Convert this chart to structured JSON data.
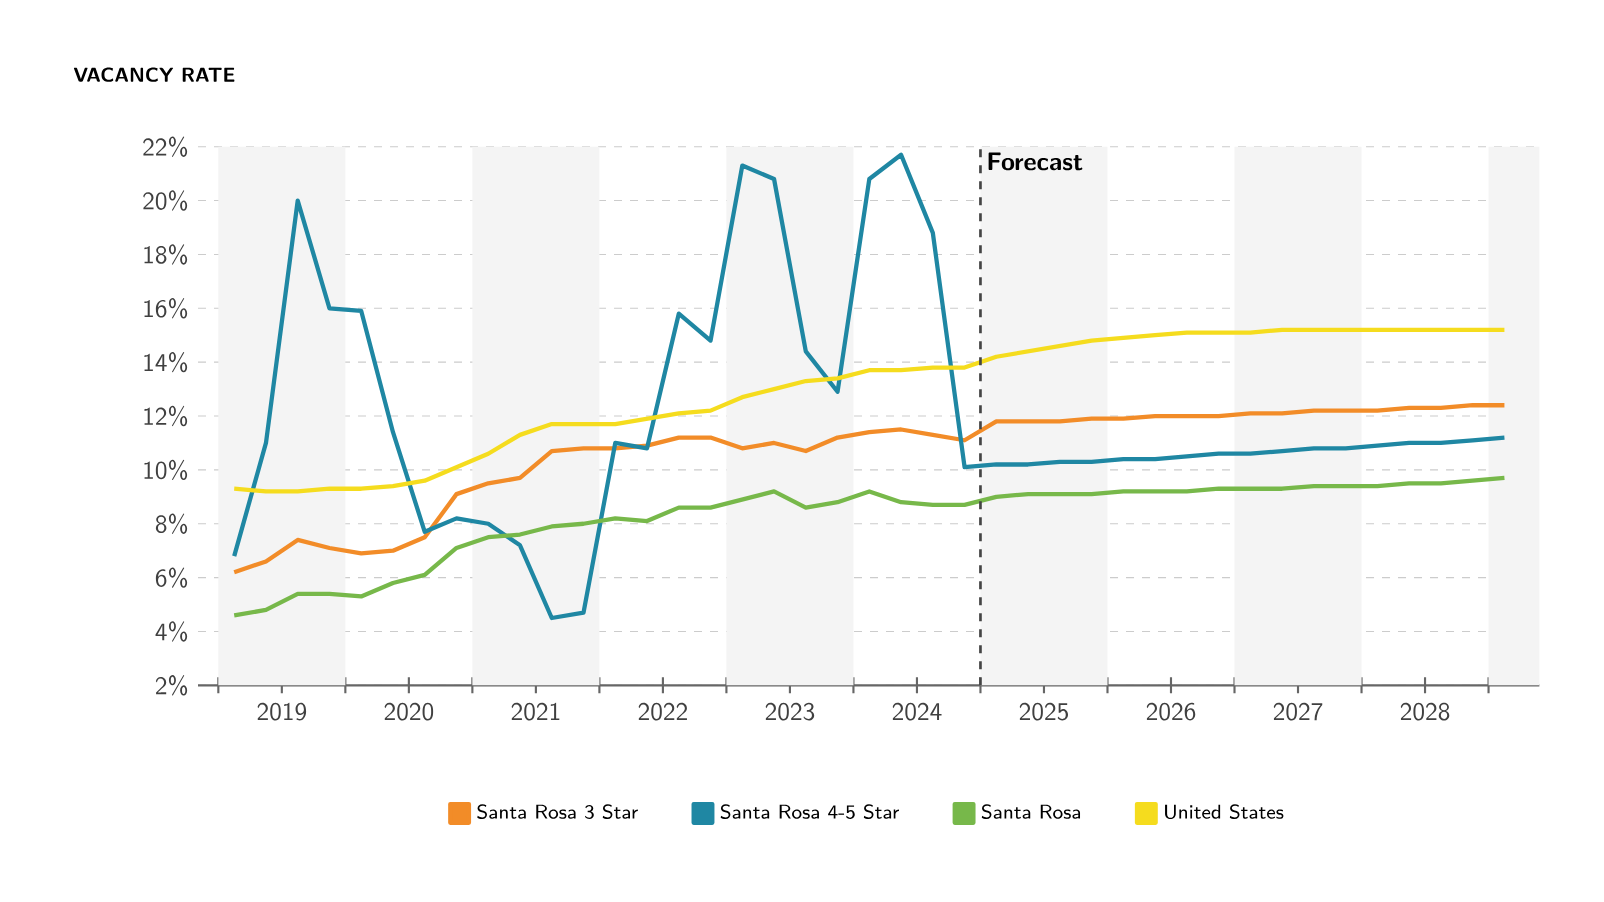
{
  "chart_data": {
    "type": "line",
    "title": "VACANCY RATE",
    "x": [
      2019.125,
      2019.375,
      2019.625,
      2019.875,
      2020.125,
      2020.375,
      2020.625,
      2020.875,
      2021.125,
      2021.375,
      2021.625,
      2021.875,
      2022.125,
      2022.375,
      2022.625,
      2022.875,
      2023.125,
      2023.375,
      2023.625,
      2023.875,
      2024.125,
      2024.375,
      2024.625,
      2024.875,
      2025.125,
      2025.375,
      2025.625,
      2025.875,
      2026.125,
      2026.375,
      2026.625,
      2026.875,
      2027.125,
      2027.375,
      2027.625,
      2027.875,
      2028.125,
      2028.375,
      2028.625,
      2028.875,
      2029.125
    ],
    "series": [
      {
        "name": "Santa Rosa 3 Star",
        "color": "#f28c28",
        "values": [
          6.2,
          6.6,
          7.4,
          7.1,
          6.9,
          7.0,
          7.5,
          9.1,
          9.5,
          9.7,
          10.7,
          10.8,
          10.8,
          10.9,
          11.2,
          11.2,
          10.8,
          11.0,
          10.7,
          11.2,
          11.4,
          11.5,
          11.3,
          11.1,
          11.8,
          11.8,
          11.8,
          11.9,
          11.9,
          12.0,
          12.0,
          12.0,
          12.1,
          12.1,
          12.2,
          12.2,
          12.2,
          12.3,
          12.3,
          12.4,
          12.4
        ]
      },
      {
        "name": "Santa Rosa 4-5 Star",
        "color": "#1f87a3",
        "values": [
          6.8,
          11.0,
          20.0,
          16.0,
          15.9,
          11.4,
          7.7,
          8.2,
          8.0,
          7.2,
          4.5,
          4.7,
          11.0,
          10.8,
          15.8,
          14.8,
          21.3,
          20.8,
          14.4,
          12.9,
          20.8,
          21.7,
          18.8,
          10.1,
          10.2,
          10.2,
          10.3,
          10.3,
          10.4,
          10.4,
          10.5,
          10.6,
          10.6,
          10.7,
          10.8,
          10.8,
          10.9,
          11.0,
          11.0,
          11.1,
          11.2
        ]
      },
      {
        "name": "Santa Rosa",
        "color": "#77b84a",
        "values": [
          4.6,
          4.8,
          5.4,
          5.4,
          5.3,
          5.8,
          6.1,
          7.1,
          7.5,
          7.6,
          7.9,
          8.0,
          8.2,
          8.1,
          8.6,
          8.6,
          8.9,
          9.2,
          8.6,
          8.8,
          9.2,
          8.8,
          8.7,
          8.7,
          9.0,
          9.1,
          9.1,
          9.1,
          9.2,
          9.2,
          9.2,
          9.3,
          9.3,
          9.3,
          9.4,
          9.4,
          9.4,
          9.5,
          9.5,
          9.6,
          9.7
        ]
      },
      {
        "name": "United States",
        "color": "#f5dc1e",
        "values": [
          9.3,
          9.2,
          9.2,
          9.3,
          9.3,
          9.4,
          9.6,
          10.1,
          10.6,
          11.3,
          11.7,
          11.7,
          11.7,
          11.9,
          12.1,
          12.2,
          12.7,
          13.0,
          13.3,
          13.4,
          13.7,
          13.7,
          13.8,
          13.8,
          14.2,
          14.4,
          14.6,
          14.8,
          14.9,
          15.0,
          15.1,
          15.1,
          15.1,
          15.2,
          15.2,
          15.2,
          15.2,
          15.2,
          15.2,
          15.2,
          15.2
        ]
      }
    ],
    "xlim": [
      2018.84,
      2029.4
    ],
    "xticks": [
      {
        "value": 2019,
        "label": null
      },
      {
        "value": 2019.5,
        "label": "2019"
      },
      {
        "value": 2020,
        "label": null
      },
      {
        "value": 2020.5,
        "label": "2020"
      },
      {
        "value": 2021,
        "label": null
      },
      {
        "value": 2021.5,
        "label": "2021"
      },
      {
        "value": 2022,
        "label": null
      },
      {
        "value": 2022.5,
        "label": "2022"
      },
      {
        "value": 2023,
        "label": null
      },
      {
        "value": 2023.5,
        "label": "2023"
      },
      {
        "value": 2024,
        "label": null
      },
      {
        "value": 2024.5,
        "label": "2024"
      },
      {
        "value": 2025,
        "label": null
      },
      {
        "value": 2025.5,
        "label": "2025"
      },
      {
        "value": 2026,
        "label": null
      },
      {
        "value": 2026.5,
        "label": "2026"
      },
      {
        "value": 2027,
        "label": null
      },
      {
        "value": 2027.5,
        "label": "2027"
      },
      {
        "value": 2028,
        "label": null
      },
      {
        "value": 2028.5,
        "label": "2028"
      },
      {
        "value": 2029,
        "label": null
      }
    ],
    "ylim": [
      2,
      22
    ],
    "yticks": [
      {
        "value": 2,
        "label": "2%"
      },
      {
        "value": 4,
        "label": "4%"
      },
      {
        "value": 6,
        "label": "6%"
      },
      {
        "value": 8,
        "label": "8%"
      },
      {
        "value": 10,
        "label": "10%"
      },
      {
        "value": 12,
        "label": "12%"
      },
      {
        "value": 14,
        "label": "14%"
      },
      {
        "value": 16,
        "label": "16%"
      },
      {
        "value": 18,
        "label": "18%"
      },
      {
        "value": 20,
        "label": "20%"
      },
      {
        "value": 22,
        "label": "22%"
      }
    ],
    "grid": "y",
    "legend": "bottom",
    "marker": "none",
    "line_style": "solid",
    "ref_lines": [
      {
        "axis": "x",
        "value": 2025,
        "label": "Forecast",
        "line_style": "dashed",
        "color": "#444444"
      }
    ],
    "bands": [
      {
        "axis": "x",
        "from": 2019,
        "to": 2020,
        "color": "#f4f4f4"
      },
      {
        "axis": "x",
        "from": 2021,
        "to": 2022,
        "color": "#f4f4f4"
      },
      {
        "axis": "x",
        "from": 2023,
        "to": 2024,
        "color": "#f4f4f4"
      },
      {
        "axis": "x",
        "from": 2025,
        "to": 2026,
        "color": "#f4f4f4"
      },
      {
        "axis": "x",
        "from": 2027,
        "to": 2028,
        "color": "#f4f4f4"
      },
      {
        "axis": "x",
        "from": 2029,
        "to": 2029.4,
        "color": "#f4f4f4"
      }
    ]
  }
}
